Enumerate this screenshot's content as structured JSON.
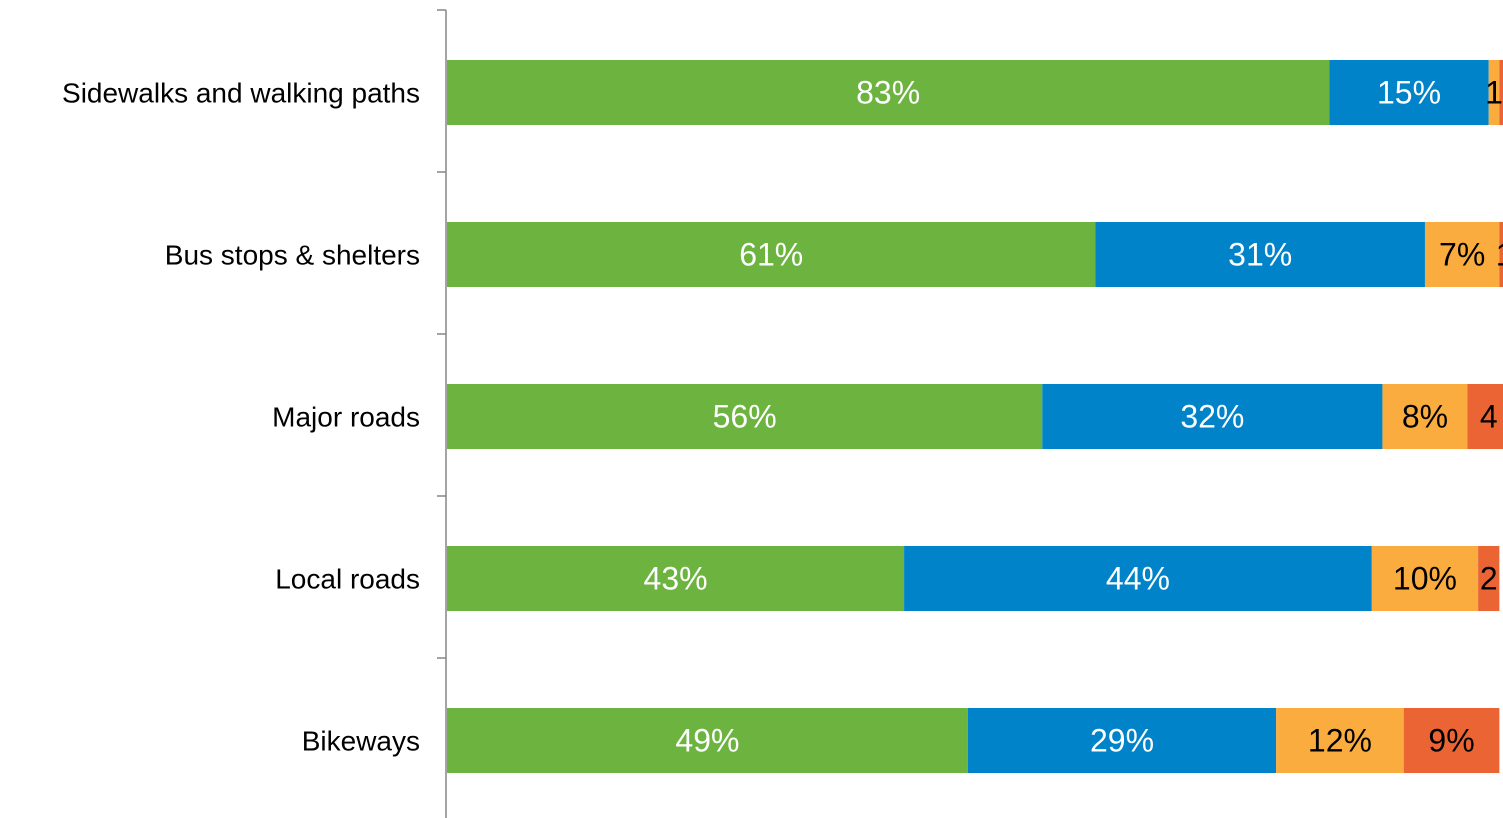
{
  "chart_data": {
    "type": "bar",
    "orientation": "horizontal",
    "stacked": true,
    "categories": [
      "Sidewalks and walking paths",
      "Bus stops & shelters",
      "Major roads",
      "Local roads",
      "Bikeways"
    ],
    "series": [
      {
        "color": "#6db33f",
        "label_color": "#ffffff",
        "values": [
          83,
          61,
          56,
          43,
          49
        ]
      },
      {
        "color": "#0083c8",
        "label_color": "#ffffff",
        "values": [
          15,
          31,
          32,
          44,
          29
        ]
      },
      {
        "color": "#fbac3f",
        "label_color": "#000000",
        "values": [
          1,
          7,
          8,
          10,
          12
        ]
      },
      {
        "color": "#eb6534",
        "label_color": "#000000",
        "values": [
          1,
          1,
          4,
          2,
          9
        ]
      }
    ],
    "value_labels": [
      [
        "83%",
        "15%",
        "1",
        ""
      ],
      [
        "61%",
        "31%",
        "7%",
        "1"
      ],
      [
        "56%",
        "32%",
        "8%",
        "4"
      ],
      [
        "43%",
        "44%",
        "10%",
        "2"
      ],
      [
        "49%",
        "29%",
        "12%",
        "9%"
      ]
    ],
    "xlim": [
      0,
      100
    ],
    "grid": false,
    "legend": "none",
    "title": "",
    "xlabel": "",
    "ylabel": ""
  }
}
